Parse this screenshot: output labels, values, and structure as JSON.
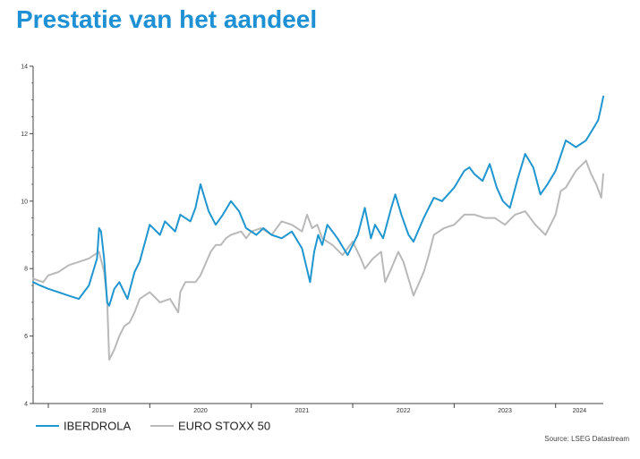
{
  "page": {
    "title": "Prestatie van het aandeel",
    "source": "Source: LSEG Datastream"
  },
  "colors": {
    "title": "#1e90d4",
    "iberdrola": "#1f96cf",
    "eurostoxx": "#b9b9b9",
    "axis": "#444444"
  },
  "chart_data": {
    "type": "line",
    "title": "",
    "xlabel": "",
    "ylabel": "",
    "ylim": [
      4,
      14
    ],
    "xlim": [
      2018.85,
      2024.47
    ],
    "y_ticks": [
      4,
      6,
      8,
      10,
      12,
      14
    ],
    "year_ticks": [
      2019,
      2020,
      2021,
      2022,
      2023,
      2024
    ],
    "legend": {
      "position": "bottom-left",
      "entries": [
        "IBERDROLA",
        "EURO STOXX 50"
      ]
    },
    "series": [
      {
        "name": "IBERDROLA",
        "color": "#1f96cf",
        "x": [
          2018.85,
          2018.92,
          2019.0,
          2019.1,
          2019.2,
          2019.3,
          2019.4,
          2019.48,
          2019.5,
          2019.52,
          2019.55,
          2019.58,
          2019.6,
          2019.65,
          2019.7,
          2019.78,
          2019.85,
          2019.9,
          2020.0,
          2020.1,
          2020.15,
          2020.25,
          2020.3,
          2020.4,
          2020.45,
          2020.5,
          2020.58,
          2020.65,
          2020.72,
          2020.8,
          2020.88,
          2020.95,
          2021.05,
          2021.12,
          2021.2,
          2021.3,
          2021.4,
          2021.5,
          2021.58,
          2021.62,
          2021.66,
          2021.7,
          2021.75,
          2021.85,
          2021.95,
          2022.05,
          2022.12,
          2022.18,
          2022.22,
          2022.3,
          2022.38,
          2022.42,
          2022.48,
          2022.55,
          2022.6,
          2022.7,
          2022.8,
          2022.88,
          2023.0,
          2023.1,
          2023.15,
          2023.2,
          2023.28,
          2023.35,
          2023.42,
          2023.48,
          2023.55,
          2023.62,
          2023.7,
          2023.78,
          2023.85,
          2023.92,
          2024.0,
          2024.1,
          2024.2,
          2024.3,
          2024.38,
          2024.42,
          2024.45,
          2024.47
        ],
        "values": [
          7.6,
          7.5,
          7.4,
          7.3,
          7.2,
          7.1,
          7.5,
          8.3,
          9.2,
          9.1,
          8.3,
          7.0,
          6.9,
          7.4,
          7.6,
          7.1,
          7.9,
          8.2,
          9.3,
          9.0,
          9.4,
          9.1,
          9.6,
          9.4,
          9.8,
          10.5,
          9.7,
          9.3,
          9.6,
          10.0,
          9.7,
          9.2,
          9.0,
          9.2,
          9.0,
          8.9,
          9.1,
          8.6,
          7.6,
          8.5,
          9.0,
          8.7,
          9.3,
          8.9,
          8.4,
          9.0,
          9.8,
          8.9,
          9.3,
          8.9,
          9.8,
          10.2,
          9.6,
          9.0,
          8.8,
          9.5,
          10.1,
          10.0,
          10.4,
          10.9,
          11.0,
          10.8,
          10.6,
          11.1,
          10.4,
          10.0,
          9.8,
          10.6,
          11.4,
          11.0,
          10.2,
          10.5,
          10.9,
          11.8,
          11.6,
          11.8,
          12.2,
          12.4,
          12.8,
          13.1
        ]
      },
      {
        "name": "EURO STOXX 50",
        "color": "#b9b9b9",
        "x": [
          2018.85,
          2018.95,
          2019.0,
          2019.1,
          2019.2,
          2019.3,
          2019.4,
          2019.45,
          2019.5,
          2019.55,
          2019.58,
          2019.6,
          2019.65,
          2019.7,
          2019.75,
          2019.8,
          2019.85,
          2019.9,
          2020.0,
          2020.1,
          2020.2,
          2020.28,
          2020.3,
          2020.35,
          2020.4,
          2020.45,
          2020.5,
          2020.6,
          2020.65,
          2020.7,
          2020.75,
          2020.8,
          2020.9,
          2020.95,
          2021.0,
          2021.1,
          2021.2,
          2021.3,
          2021.4,
          2021.5,
          2021.55,
          2021.6,
          2021.65,
          2021.7,
          2021.8,
          2021.9,
          2022.0,
          2022.08,
          2022.12,
          2022.2,
          2022.28,
          2022.32,
          2022.38,
          2022.45,
          2022.5,
          2022.6,
          2022.7,
          2022.75,
          2022.8,
          2022.9,
          2023.0,
          2023.1,
          2023.2,
          2023.3,
          2023.4,
          2023.5,
          2023.6,
          2023.7,
          2023.8,
          2023.9,
          2024.0,
          2024.05,
          2024.1,
          2024.2,
          2024.3,
          2024.35,
          2024.4,
          2024.45,
          2024.47
        ],
        "values": [
          7.7,
          7.6,
          7.8,
          7.9,
          8.1,
          8.2,
          8.3,
          8.4,
          8.5,
          7.9,
          7.1,
          5.3,
          5.6,
          6.0,
          6.3,
          6.4,
          6.7,
          7.1,
          7.3,
          7.0,
          7.1,
          6.7,
          7.3,
          7.6,
          7.6,
          7.6,
          7.8,
          8.5,
          8.7,
          8.7,
          8.9,
          9.0,
          9.1,
          8.9,
          9.1,
          9.2,
          9.0,
          9.4,
          9.3,
          9.1,
          9.6,
          9.2,
          9.3,
          8.9,
          8.7,
          8.4,
          8.8,
          8.3,
          8.0,
          8.3,
          8.5,
          7.6,
          8.0,
          8.5,
          8.2,
          7.2,
          7.9,
          8.4,
          9.0,
          9.2,
          9.3,
          9.6,
          9.6,
          9.5,
          9.5,
          9.3,
          9.6,
          9.7,
          9.3,
          9.0,
          9.6,
          10.3,
          10.4,
          10.9,
          11.2,
          10.8,
          10.5,
          10.1,
          10.8
        ]
      }
    ]
  }
}
